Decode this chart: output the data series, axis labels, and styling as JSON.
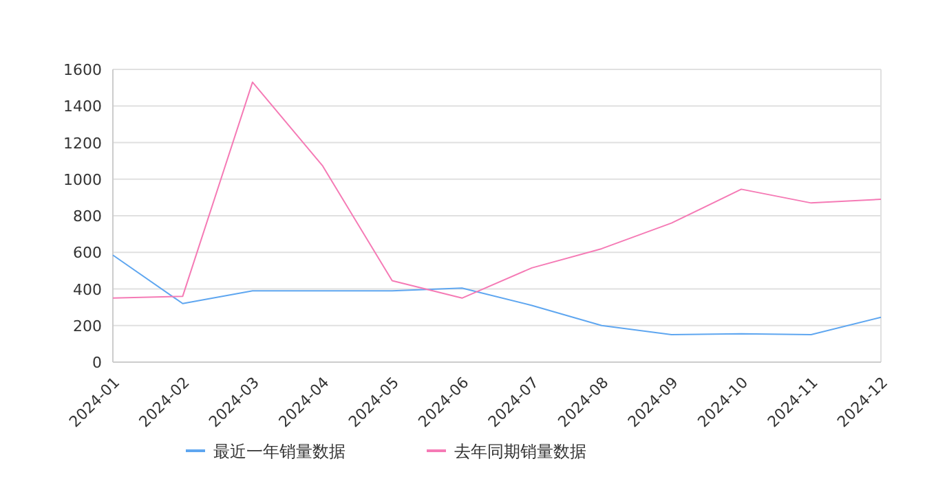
{
  "chart_data": {
    "type": "line",
    "categories": [
      "2024-01",
      "2024-02",
      "2024-03",
      "2024-04",
      "2024-05",
      "2024-06",
      "2024-07",
      "2024-08",
      "2024-09",
      "2024-10",
      "2024-11",
      "2024-12"
    ],
    "series": [
      {
        "name": "最近一年销量数据",
        "color": "#5ea6f0",
        "values": [
          585,
          320,
          390,
          390,
          390,
          405,
          310,
          200,
          150,
          155,
          150,
          245
        ]
      },
      {
        "name": "去年同期销量数据",
        "color": "#f57ab5",
        "values": [
          350,
          360,
          1530,
          1075,
          445,
          350,
          515,
          620,
          760,
          945,
          870,
          890
        ]
      }
    ],
    "ylim": [
      0,
      1600
    ],
    "yticks": [
      0,
      200,
      400,
      600,
      800,
      1000,
      1200,
      1400,
      1600
    ],
    "grid": "y",
    "legend": "bottom",
    "marker": "none",
    "line_style": "solid"
  }
}
